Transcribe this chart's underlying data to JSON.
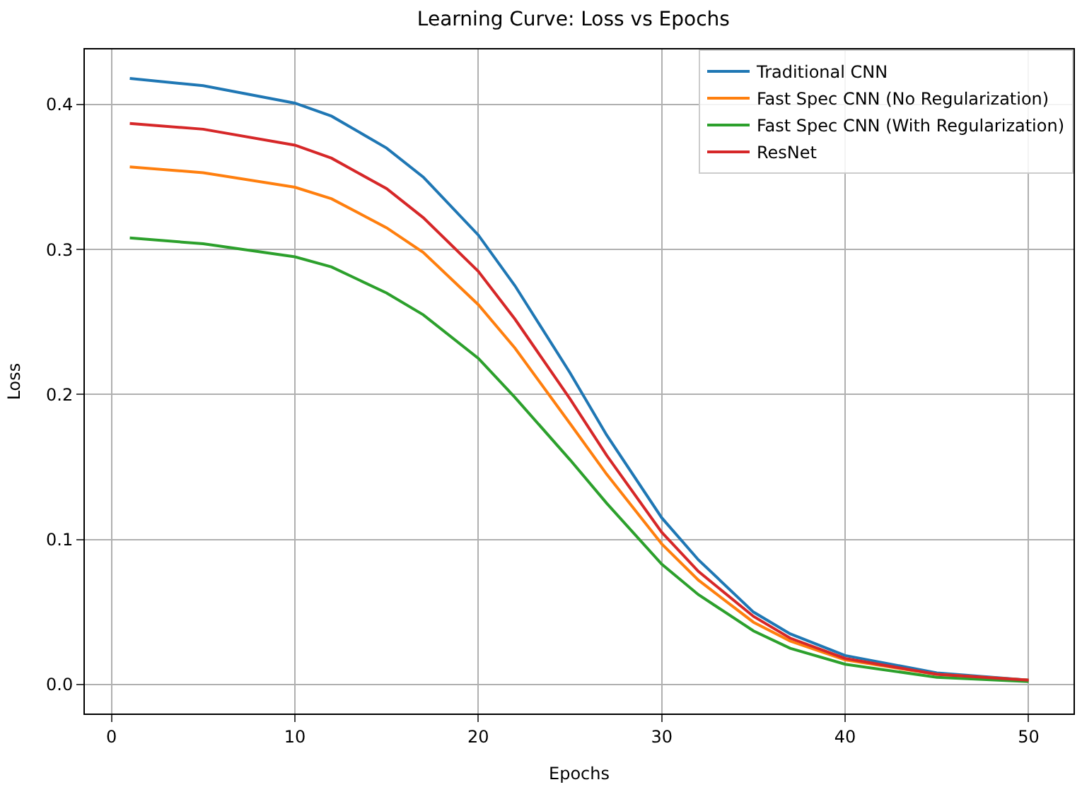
{
  "chart_data": {
    "type": "line",
    "title": "Learning Curve: Loss vs Epochs",
    "xlabel": "Epochs",
    "ylabel": "Loss",
    "x": [
      1,
      5,
      10,
      12,
      15,
      17,
      20,
      22,
      25,
      27,
      30,
      32,
      35,
      37,
      40,
      45,
      50
    ],
    "series": [
      {
        "name": "Traditional CNN",
        "color": "#1f77b4",
        "values": [
          0.418,
          0.413,
          0.401,
          0.392,
          0.37,
          0.35,
          0.31,
          0.275,
          0.215,
          0.172,
          0.115,
          0.086,
          0.05,
          0.035,
          0.02,
          0.008,
          0.003
        ]
      },
      {
        "name": "Fast Spec CNN (No Regularization)",
        "color": "#ff7f0e",
        "values": [
          0.357,
          0.353,
          0.343,
          0.335,
          0.315,
          0.298,
          0.262,
          0.232,
          0.18,
          0.145,
          0.097,
          0.072,
          0.043,
          0.03,
          0.017,
          0.007,
          0.003
        ]
      },
      {
        "name": "Fast Spec CNN (With Regularization)",
        "color": "#2ca02c",
        "values": [
          0.308,
          0.304,
          0.295,
          0.288,
          0.27,
          0.255,
          0.225,
          0.198,
          0.155,
          0.125,
          0.083,
          0.062,
          0.037,
          0.025,
          0.014,
          0.005,
          0.002
        ]
      },
      {
        "name": "ResNet",
        "color": "#d62728",
        "values": [
          0.387,
          0.383,
          0.372,
          0.363,
          0.342,
          0.322,
          0.285,
          0.252,
          0.197,
          0.158,
          0.105,
          0.078,
          0.047,
          0.032,
          0.018,
          0.007,
          0.003
        ]
      }
    ],
    "xlim": [
      -1.45,
      52.45
    ],
    "ylim": [
      -0.02,
      0.438
    ],
    "xticks": [
      0,
      10,
      20,
      30,
      40,
      50
    ],
    "yticks": [
      {
        "value": 0,
        "label": "0.0"
      },
      {
        "value": 0.1,
        "label": "0.1"
      },
      {
        "value": 0.2,
        "label": "0.2"
      },
      {
        "value": 0.3,
        "label": "0.3"
      },
      {
        "value": 0.4,
        "label": "0.4"
      }
    ],
    "grid": true,
    "legend": "top right",
    "marker": "none",
    "line_style": "solid"
  }
}
